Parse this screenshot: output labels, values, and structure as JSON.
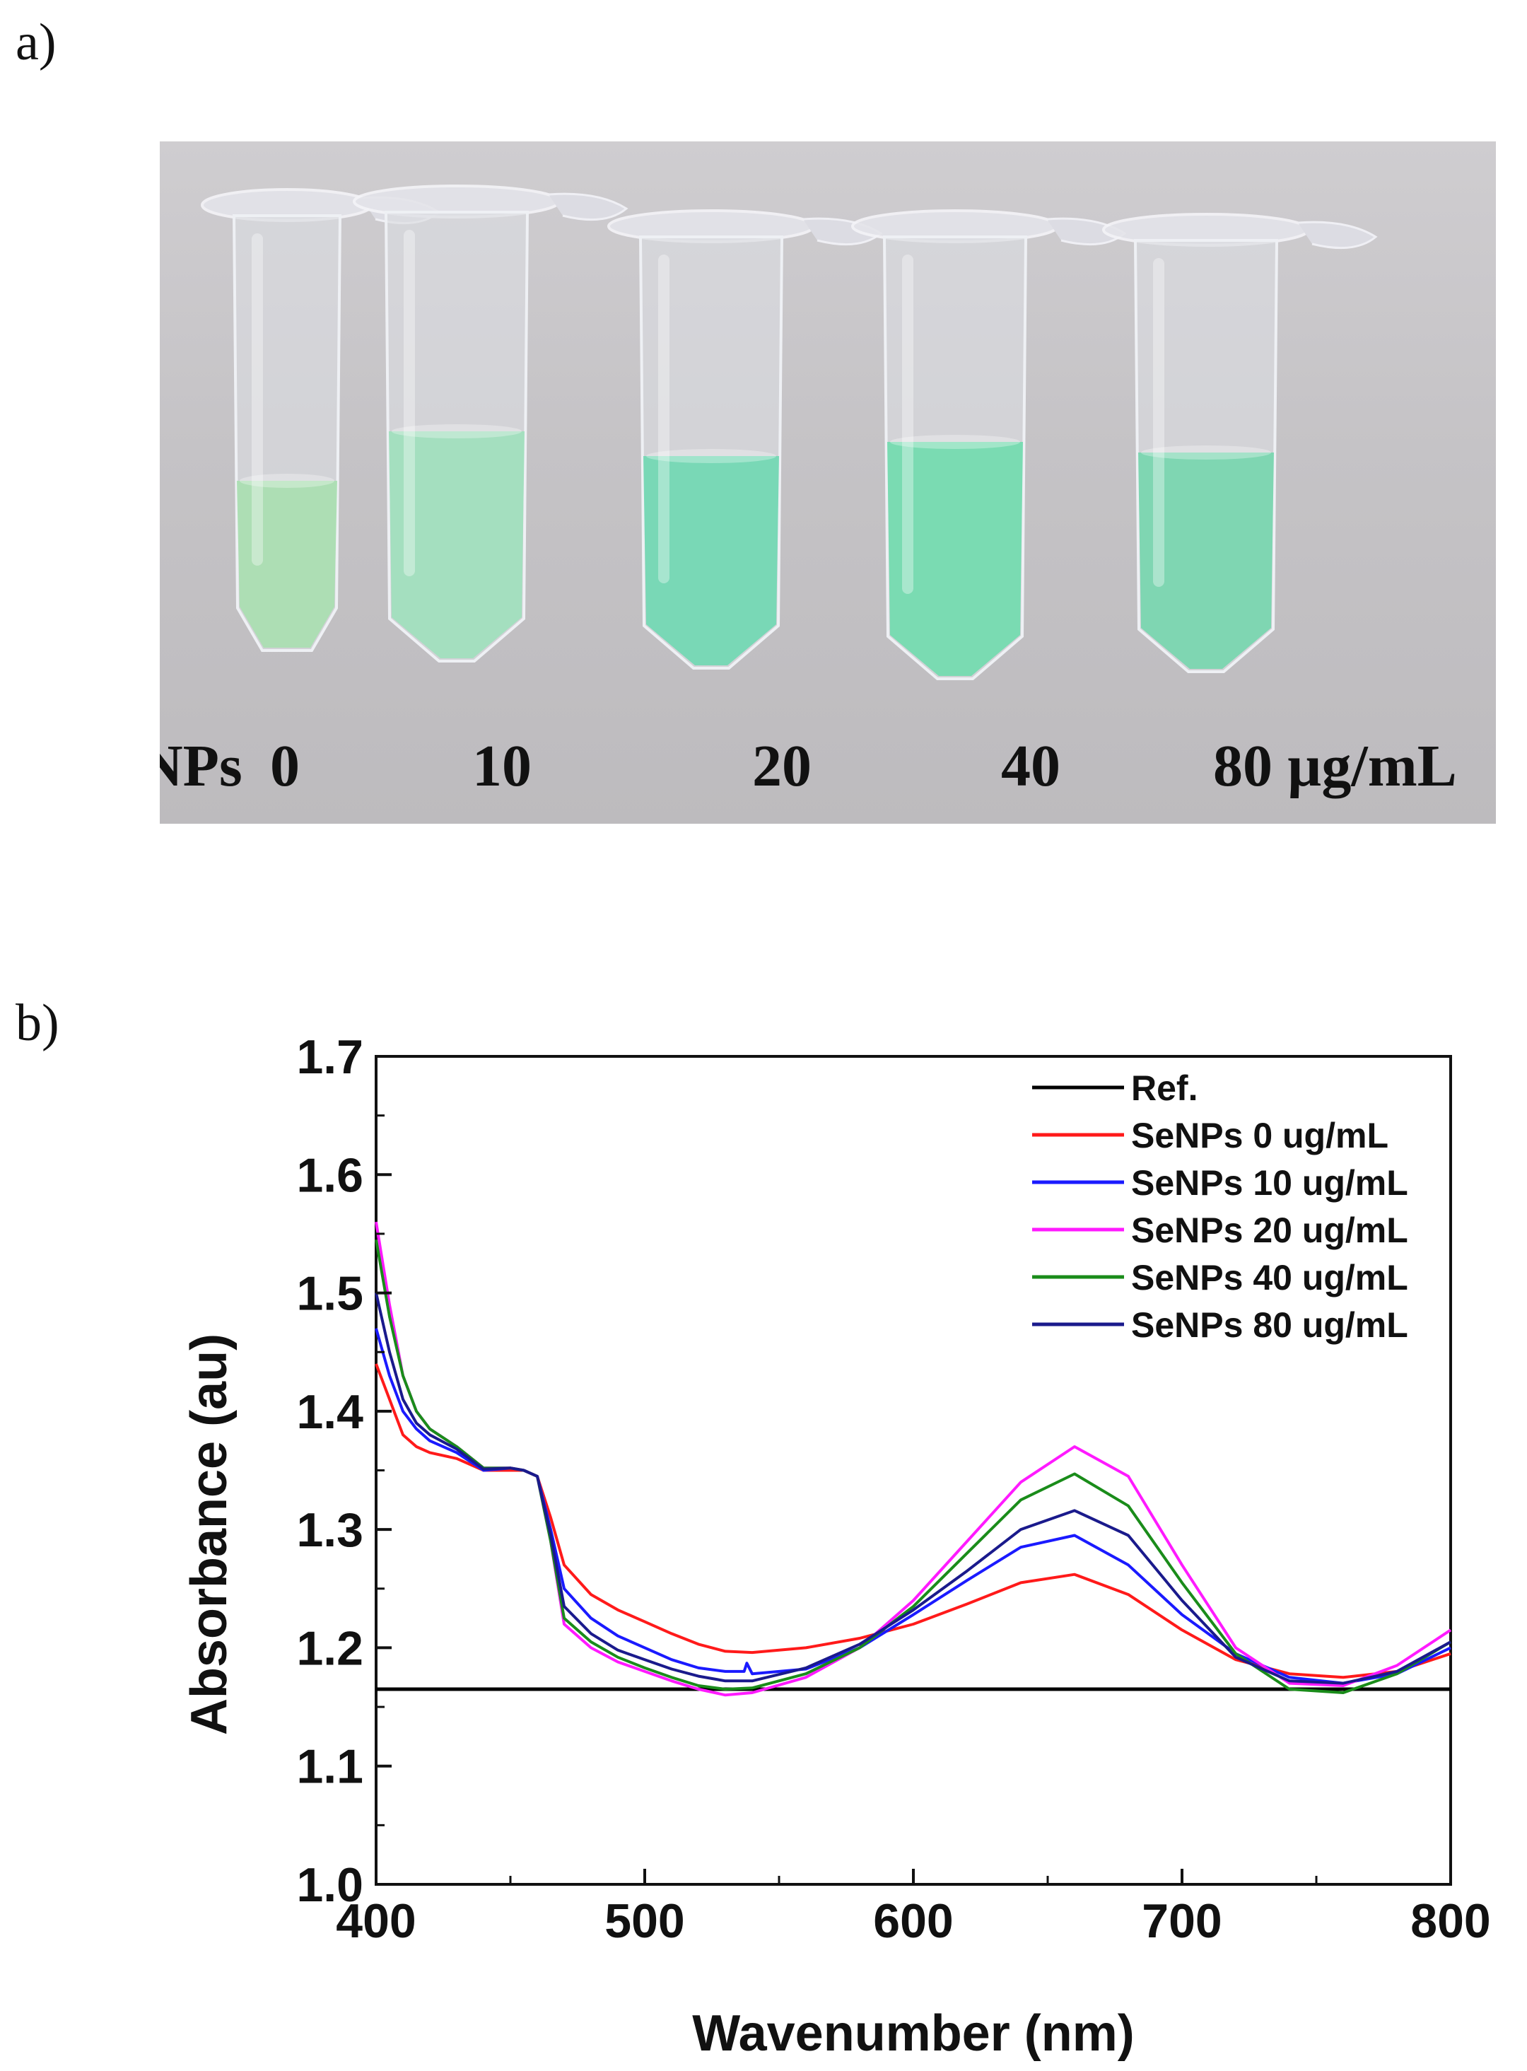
{
  "panels": {
    "a": "a)",
    "b": "b)"
  },
  "photo": {
    "prefix": "SeNPs",
    "concentrations": [
      "0",
      "10",
      "20",
      "40",
      "80 µg/mL"
    ],
    "liquid_colors": [
      "#a9dfb0",
      "#9fe0bd",
      "#6fd8b2",
      "#70dcae",
      "#76d6ae"
    ]
  },
  "chart_data": {
    "type": "line",
    "xlabel": "Wavenumber (nm)",
    "ylabel": "Absorbance (au)",
    "xlim": [
      400,
      800
    ],
    "ylim": [
      1.0,
      1.7
    ],
    "xticks": [
      "400",
      "500",
      "600",
      "700",
      "800"
    ],
    "yticks": [
      "1.0",
      "1.1",
      "1.2",
      "1.3",
      "1.4",
      "1.5",
      "1.6",
      "1.7"
    ],
    "legend_position": "top-right",
    "series": [
      {
        "name": "Ref.",
        "color": "#000000",
        "x": [
          400,
          800
        ],
        "y": [
          1.165,
          1.165
        ]
      },
      {
        "name": "SeNPs 0 ug/mL",
        "color": "#ff1a1a",
        "x": [
          400,
          405,
          410,
          415,
          420,
          430,
          440,
          450,
          455,
          460,
          465,
          470,
          480,
          490,
          500,
          510,
          520,
          530,
          540,
          560,
          580,
          600,
          620,
          640,
          660,
          680,
          700,
          720,
          740,
          760,
          780,
          800
        ],
        "y": [
          1.44,
          1.41,
          1.38,
          1.37,
          1.365,
          1.36,
          1.35,
          1.35,
          1.35,
          1.345,
          1.31,
          1.27,
          1.245,
          1.232,
          1.222,
          1.212,
          1.203,
          1.197,
          1.196,
          1.2,
          1.208,
          1.22,
          1.237,
          1.255,
          1.262,
          1.245,
          1.215,
          1.19,
          1.178,
          1.175,
          1.18,
          1.195
        ]
      },
      {
        "name": "SeNPs 10 ug/mL",
        "color": "#1a1aff",
        "x": [
          400,
          405,
          410,
          415,
          420,
          430,
          440,
          450,
          455,
          460,
          465,
          470,
          480,
          490,
          500,
          510,
          520,
          530,
          537,
          538,
          540,
          560,
          580,
          600,
          620,
          640,
          660,
          680,
          700,
          720,
          740,
          760,
          780,
          800
        ],
        "y": [
          1.47,
          1.43,
          1.4,
          1.385,
          1.375,
          1.365,
          1.35,
          1.352,
          1.35,
          1.345,
          1.3,
          1.25,
          1.225,
          1.21,
          1.2,
          1.19,
          1.183,
          1.18,
          1.18,
          1.187,
          1.178,
          1.182,
          1.2,
          1.228,
          1.257,
          1.285,
          1.295,
          1.27,
          1.228,
          1.195,
          1.175,
          1.17,
          1.178,
          1.2
        ]
      },
      {
        "name": "SeNPs 20 ug/mL",
        "color": "#ff1aff",
        "x": [
          400,
          405,
          410,
          415,
          420,
          430,
          440,
          450,
          455,
          460,
          465,
          470,
          480,
          490,
          500,
          510,
          520,
          530,
          540,
          560,
          580,
          600,
          620,
          640,
          660,
          680,
          700,
          720,
          740,
          760,
          780,
          800
        ],
        "y": [
          1.56,
          1.49,
          1.43,
          1.4,
          1.385,
          1.37,
          1.352,
          1.352,
          1.35,
          1.345,
          1.29,
          1.22,
          1.2,
          1.188,
          1.18,
          1.172,
          1.165,
          1.16,
          1.162,
          1.175,
          1.2,
          1.24,
          1.29,
          1.34,
          1.37,
          1.345,
          1.27,
          1.2,
          1.17,
          1.168,
          1.185,
          1.215
        ]
      },
      {
        "name": "SeNPs 40 ug/mL",
        "color": "#1a8c1a",
        "x": [
          400,
          405,
          410,
          415,
          420,
          430,
          440,
          450,
          455,
          460,
          465,
          470,
          480,
          490,
          500,
          510,
          520,
          530,
          540,
          560,
          580,
          600,
          620,
          640,
          660,
          680,
          700,
          720,
          740,
          760,
          780,
          800
        ],
        "y": [
          1.545,
          1.48,
          1.43,
          1.4,
          1.385,
          1.37,
          1.352,
          1.352,
          1.35,
          1.345,
          1.29,
          1.225,
          1.205,
          1.192,
          1.183,
          1.175,
          1.168,
          1.165,
          1.166,
          1.178,
          1.2,
          1.235,
          1.28,
          1.325,
          1.347,
          1.32,
          1.255,
          1.195,
          1.165,
          1.162,
          1.178,
          1.205
        ]
      },
      {
        "name": "SeNPs 80 ug/mL",
        "color": "#1a1a8c",
        "x": [
          400,
          405,
          410,
          415,
          420,
          430,
          440,
          450,
          455,
          460,
          465,
          470,
          480,
          490,
          500,
          510,
          520,
          530,
          540,
          560,
          580,
          600,
          620,
          640,
          660,
          680,
          700,
          720,
          740,
          760,
          780,
          800
        ],
        "y": [
          1.5,
          1.45,
          1.41,
          1.39,
          1.38,
          1.368,
          1.351,
          1.352,
          1.35,
          1.345,
          1.295,
          1.235,
          1.212,
          1.198,
          1.19,
          1.182,
          1.176,
          1.172,
          1.172,
          1.183,
          1.203,
          1.232,
          1.265,
          1.3,
          1.316,
          1.295,
          1.24,
          1.192,
          1.172,
          1.17,
          1.18,
          1.205
        ]
      }
    ]
  }
}
